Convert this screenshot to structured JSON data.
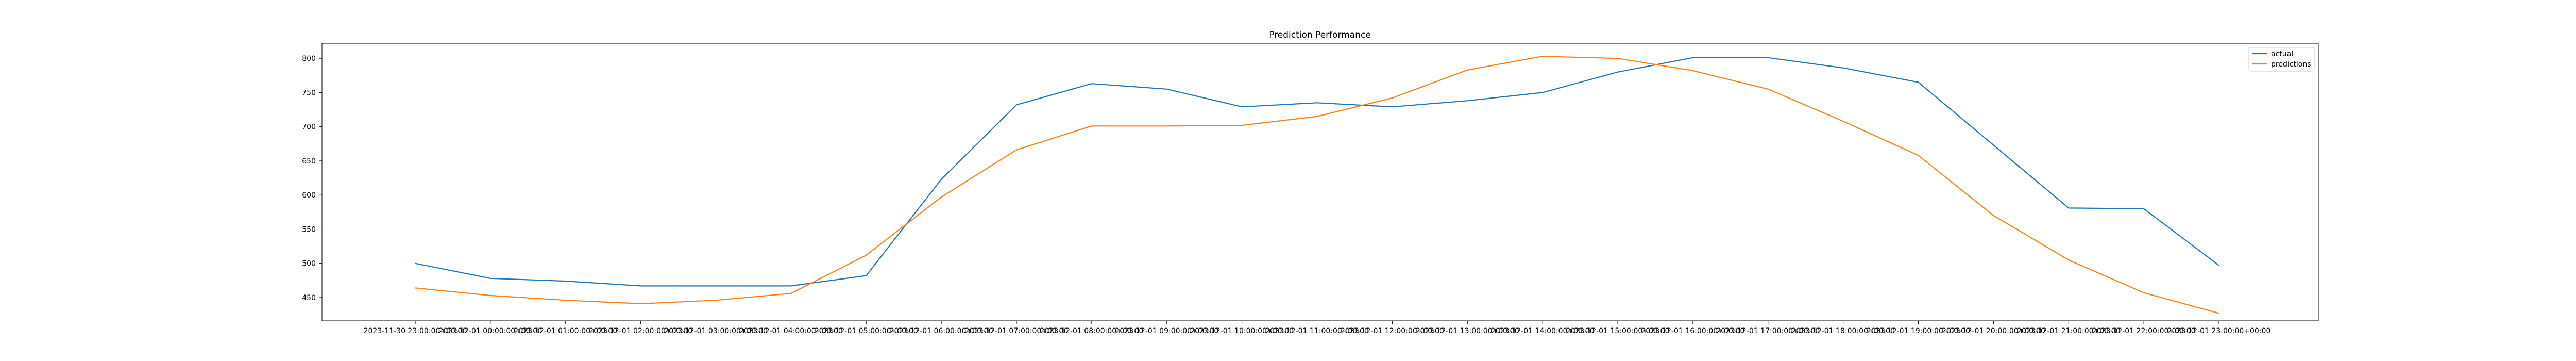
{
  "chart_data": {
    "type": "line",
    "title": "Prediction Performance",
    "xlabel": "",
    "ylabel": "",
    "x": [
      "2023-11-30 23:00:00+00:00",
      "2023-12-01 00:00:00+00:00",
      "2023-12-01 01:00:00+00:00",
      "2023-12-01 02:00:00+00:00",
      "2023-12-01 03:00:00+00:00",
      "2023-12-01 04:00:00+00:00",
      "2023-12-01 05:00:00+00:00",
      "2023-12-01 06:00:00+00:00",
      "2023-12-01 07:00:00+00:00",
      "2023-12-01 08:00:00+00:00",
      "2023-12-01 09:00:00+00:00",
      "2023-12-01 10:00:00+00:00",
      "2023-12-01 11:00:00+00:00",
      "2023-12-01 12:00:00+00:00",
      "2023-12-01 13:00:00+00:00",
      "2023-12-01 14:00:00+00:00",
      "2023-12-01 15:00:00+00:00",
      "2023-12-01 16:00:00+00:00",
      "2023-12-01 17:00:00+00:00",
      "2023-12-01 18:00:00+00:00",
      "2023-12-01 19:00:00+00:00",
      "2023-12-01 20:00:00+00:00",
      "2023-12-01 21:00:00+00:00",
      "2023-12-01 22:00:00+00:00",
      "2023-12-01 23:00:00+00:00"
    ],
    "yticks": [
      450,
      500,
      550,
      600,
      650,
      700,
      750,
      800
    ],
    "ylim": [
      416,
      822
    ],
    "grid": false,
    "legend_position": "top-right",
    "series": [
      {
        "name": "actual",
        "color": "#1f77b4",
        "values": [
          500,
          478,
          474,
          467,
          467,
          467,
          482,
          623,
          732,
          763,
          755,
          729,
          735,
          729,
          738,
          750,
          780,
          801,
          801,
          786,
          765,
          673,
          581,
          580,
          497
        ]
      },
      {
        "name": "predictions",
        "color": "#ff7f0e",
        "values": [
          464,
          453,
          446,
          441,
          446,
          456,
          512,
          597,
          666,
          701,
          701,
          702,
          715,
          742,
          783,
          803,
          800,
          782,
          755,
          708,
          658,
          570,
          505,
          457,
          427
        ]
      }
    ]
  }
}
